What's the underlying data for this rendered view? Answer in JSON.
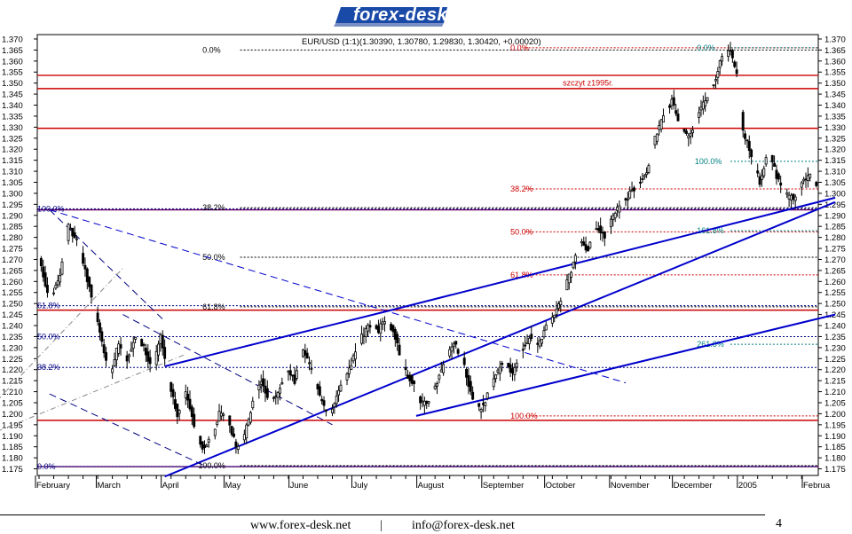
{
  "header": {
    "logo_text": "forex-desk"
  },
  "footer": {
    "url": "www.forex-desk.net",
    "separator": "|",
    "email": "info@forex-desk.net",
    "page_number": "4"
  },
  "colors": {
    "red": "#cc0000",
    "blue": "#0000cc",
    "navy": "#000080",
    "teal": "#008080",
    "purple": "#660066",
    "black": "#000000"
  },
  "chart_data": {
    "type": "candlestick",
    "title": "EUR/USD (1:1)(1.30390, 1.30780, 1.29830, 1.30420, +0.00020)",
    "ylim": [
      1.172,
      1.372
    ],
    "y_ticks": [
      "1.370",
      "1.365",
      "1.360",
      "1.355",
      "1.350",
      "1.345",
      "1.340",
      "1.335",
      "1.330",
      "1.325",
      "1.320",
      "1.315",
      "1.310",
      "1.305",
      "1.300",
      "1.295",
      "1.290",
      "1.285",
      "1.280",
      "1.275",
      "1.270",
      "1.265",
      "1.260",
      "1.255",
      "1.250",
      "1.245",
      "1.240",
      "1.235",
      "1.230",
      "1.225",
      "1.220",
      "1.215",
      "1.210",
      "1.205",
      "1.200",
      "1.195",
      "1.190",
      "1.185",
      "1.180",
      "1.175"
    ],
    "x_labels": [
      "February",
      "March",
      "April",
      "May",
      "June",
      "July",
      "August",
      "September",
      "October",
      "November",
      "December",
      "2005",
      "Februa"
    ],
    "x_label_days": [
      0,
      29,
      60,
      90,
      121,
      151,
      182,
      213,
      243,
      274,
      304,
      335,
      366
    ],
    "last_day": 371,
    "horizontal_levels": [
      {
        "value": 1.3535,
        "color": "red"
      },
      {
        "value": 1.3475,
        "color": "red"
      },
      {
        "value": 1.3295,
        "color": "red"
      },
      {
        "value": 1.2925,
        "color": "purple"
      },
      {
        "value": 1.247,
        "color": "red"
      },
      {
        "value": 1.197,
        "color": "red"
      },
      {
        "value": 1.176,
        "color": "purple"
      }
    ],
    "annotations": [
      {
        "text": "szczyt z1995r.",
        "x_day": 250,
        "y": 1.35,
        "color": "red"
      }
    ],
    "fibonacci_sets": [
      {
        "color": "navy",
        "levels": [
          {
            "label": "0.0%",
            "y": 1.176,
            "x0_day": -20,
            "x1_day": 380,
            "label_day": -18
          },
          {
            "label": "38.2%",
            "y": 1.221,
            "x0_day": -20,
            "x1_day": 380,
            "label_day": -18
          },
          {
            "label": "50.0%",
            "y": 1.235,
            "x0_day": -20,
            "x1_day": 380,
            "label_day": -18
          },
          {
            "label": "61.8%",
            "y": 1.249,
            "x0_day": -20,
            "x1_day": 380,
            "label_day": -18
          },
          {
            "label": "100.0%",
            "y": 1.293,
            "x0_day": -20,
            "x1_day": 380,
            "label_day": -18
          }
        ]
      },
      {
        "color": "black",
        "levels": [
          {
            "label": "0.0%",
            "y": 1.365,
            "x0_day": 96,
            "x1_day": 380,
            "label_day": 78
          },
          {
            "label": "38.2%",
            "y": 1.2935,
            "x0_day": 96,
            "x1_day": 380,
            "label_day": 78
          },
          {
            "label": "50.0%",
            "y": 1.271,
            "x0_day": 96,
            "x1_day": 380,
            "label_day": 78
          },
          {
            "label": "61.8%",
            "y": 1.2485,
            "x0_day": 96,
            "x1_day": 380,
            "label_day": 78
          },
          {
            "label": "100.0%",
            "y": 1.1765,
            "x0_day": 96,
            "x1_day": 380,
            "label_day": 76
          }
        ]
      },
      {
        "color": "red",
        "levels": [
          {
            "label": "0.0%",
            "y": 1.366,
            "x0_day": 232,
            "x1_day": 380,
            "label_day": 225
          },
          {
            "label": "38.2%",
            "y": 1.302,
            "x0_day": 232,
            "x1_day": 380,
            "label_day": 225
          },
          {
            "label": "50.0%",
            "y": 1.2825,
            "x0_day": 232,
            "x1_day": 380,
            "label_day": 225
          },
          {
            "label": "61.8%",
            "y": 1.263,
            "x0_day": 232,
            "x1_day": 380,
            "label_day": 225
          },
          {
            "label": "100.0%",
            "y": 1.199,
            "x0_day": 232,
            "x1_day": 380,
            "label_day": 225
          }
        ]
      },
      {
        "color": "teal",
        "levels": [
          {
            "label": "0.0%",
            "y": 1.366,
            "x0_day": 330,
            "x1_day": 380,
            "label_day": 314
          },
          {
            "label": "100.0%",
            "y": 1.3145,
            "x0_day": 330,
            "x1_day": 380,
            "label_day": 313
          },
          {
            "label": "161.8%",
            "y": 1.283,
            "x0_day": 330,
            "x1_day": 380,
            "label_day": 314
          },
          {
            "label": "261.8%",
            "y": 1.2315,
            "x0_day": 330,
            "x1_day": 380,
            "label_day": 314
          }
        ]
      }
    ],
    "trend_lines": [
      {
        "points": [
          [
            60,
            1.1715
          ],
          [
            380,
            1.296
          ]
        ],
        "color": "blue",
        "style": "solid"
      },
      {
        "points": [
          [
            60,
            1.2215
          ],
          [
            166,
            1.2465
          ]
        ],
        "color": "blue",
        "style": "solid"
      },
      {
        "points": [
          [
            166,
            1.2465
          ],
          [
            380,
            1.298
          ]
        ],
        "color": "blue",
        "style": "solid"
      },
      {
        "points": [
          [
            180,
            1.199
          ],
          [
            380,
            1.245
          ]
        ],
        "color": "blue",
        "style": "solid"
      },
      {
        "points": [
          [
            5,
            1.2925
          ],
          [
            280,
            1.214
          ]
        ],
        "color": "blue",
        "style": "dashed"
      },
      {
        "points": [
          [
            5,
            1.2925
          ],
          [
            60,
            1.242
          ]
        ],
        "color": "navy",
        "style": "dashed"
      },
      {
        "points": [
          [
            5,
            1.209
          ],
          [
            80,
            1.176
          ]
        ],
        "color": "navy",
        "style": "dashed"
      },
      {
        "points": [
          [
            40,
            1.245
          ],
          [
            140,
            1.195
          ]
        ],
        "color": "navy",
        "style": "dashed"
      },
      {
        "points": [
          [
            -20,
            1.206
          ],
          [
            40,
            1.266
          ]
        ],
        "color": "gray",
        "style": "dashdot"
      },
      {
        "points": [
          [
            -20,
            1.192
          ],
          [
            70,
            1.227
          ]
        ],
        "color": "gray",
        "style": "dashdot"
      }
    ],
    "price_path": [
      [
        0,
        1.27
      ],
      [
        5,
        1.252
      ],
      [
        10,
        1.262
      ],
      [
        14,
        1.285
      ],
      [
        18,
        1.278
      ],
      [
        22,
        1.265
      ],
      [
        26,
        1.25
      ],
      [
        30,
        1.232
      ],
      [
        34,
        1.218
      ],
      [
        38,
        1.232
      ],
      [
        42,
        1.225
      ],
      [
        46,
        1.235
      ],
      [
        50,
        1.23
      ],
      [
        54,
        1.22
      ],
      [
        58,
        1.235
      ],
      [
        62,
        1.215
      ],
      [
        66,
        1.2
      ],
      [
        70,
        1.21
      ],
      [
        74,
        1.195
      ],
      [
        78,
        1.185
      ],
      [
        82,
        1.188
      ],
      [
        86,
        1.2
      ],
      [
        90,
        1.198
      ],
      [
        94,
        1.185
      ],
      [
        98,
        1.19
      ],
      [
        102,
        1.205
      ],
      [
        106,
        1.215
      ],
      [
        110,
        1.205
      ],
      [
        114,
        1.21
      ],
      [
        118,
        1.22
      ],
      [
        122,
        1.215
      ],
      [
        126,
        1.228
      ],
      [
        130,
        1.22
      ],
      [
        134,
        1.208
      ],
      [
        138,
        1.198
      ],
      [
        142,
        1.208
      ],
      [
        146,
        1.215
      ],
      [
        150,
        1.225
      ],
      [
        154,
        1.235
      ],
      [
        158,
        1.24
      ],
      [
        162,
        1.238
      ],
      [
        166,
        1.244
      ],
      [
        170,
        1.235
      ],
      [
        174,
        1.22
      ],
      [
        178,
        1.215
      ],
      [
        182,
        1.205
      ],
      [
        186,
        1.205
      ],
      [
        190,
        1.215
      ],
      [
        194,
        1.225
      ],
      [
        198,
        1.232
      ],
      [
        202,
        1.225
      ],
      [
        206,
        1.21
      ],
      [
        210,
        1.202
      ],
      [
        214,
        1.208
      ],
      [
        218,
        1.218
      ],
      [
        222,
        1.225
      ],
      [
        226,
        1.218
      ],
      [
        230,
        1.228
      ],
      [
        234,
        1.235
      ],
      [
        238,
        1.23
      ],
      [
        242,
        1.24
      ],
      [
        246,
        1.245
      ],
      [
        250,
        1.255
      ],
      [
        254,
        1.265
      ],
      [
        258,
        1.278
      ],
      [
        262,
        1.275
      ],
      [
        266,
        1.285
      ],
      [
        270,
        1.28
      ],
      [
        274,
        1.29
      ],
      [
        278,
        1.295
      ],
      [
        282,
        1.3
      ],
      [
        286,
        1.305
      ],
      [
        290,
        1.31
      ],
      [
        294,
        1.325
      ],
      [
        298,
        1.335
      ],
      [
        302,
        1.342
      ],
      [
        306,
        1.33
      ],
      [
        310,
        1.325
      ],
      [
        314,
        1.335
      ],
      [
        318,
        1.342
      ],
      [
        322,
        1.35
      ],
      [
        326,
        1.362
      ],
      [
        330,
        1.364
      ],
      [
        333,
        1.354
      ],
      [
        336,
        1.328
      ],
      [
        340,
        1.318
      ],
      [
        344,
        1.305
      ],
      [
        348,
        1.32
      ],
      [
        352,
        1.308
      ],
      [
        356,
        1.299
      ],
      [
        360,
        1.298
      ],
      [
        364,
        1.305
      ],
      [
        368,
        1.308
      ],
      [
        371,
        1.304
      ]
    ]
  }
}
